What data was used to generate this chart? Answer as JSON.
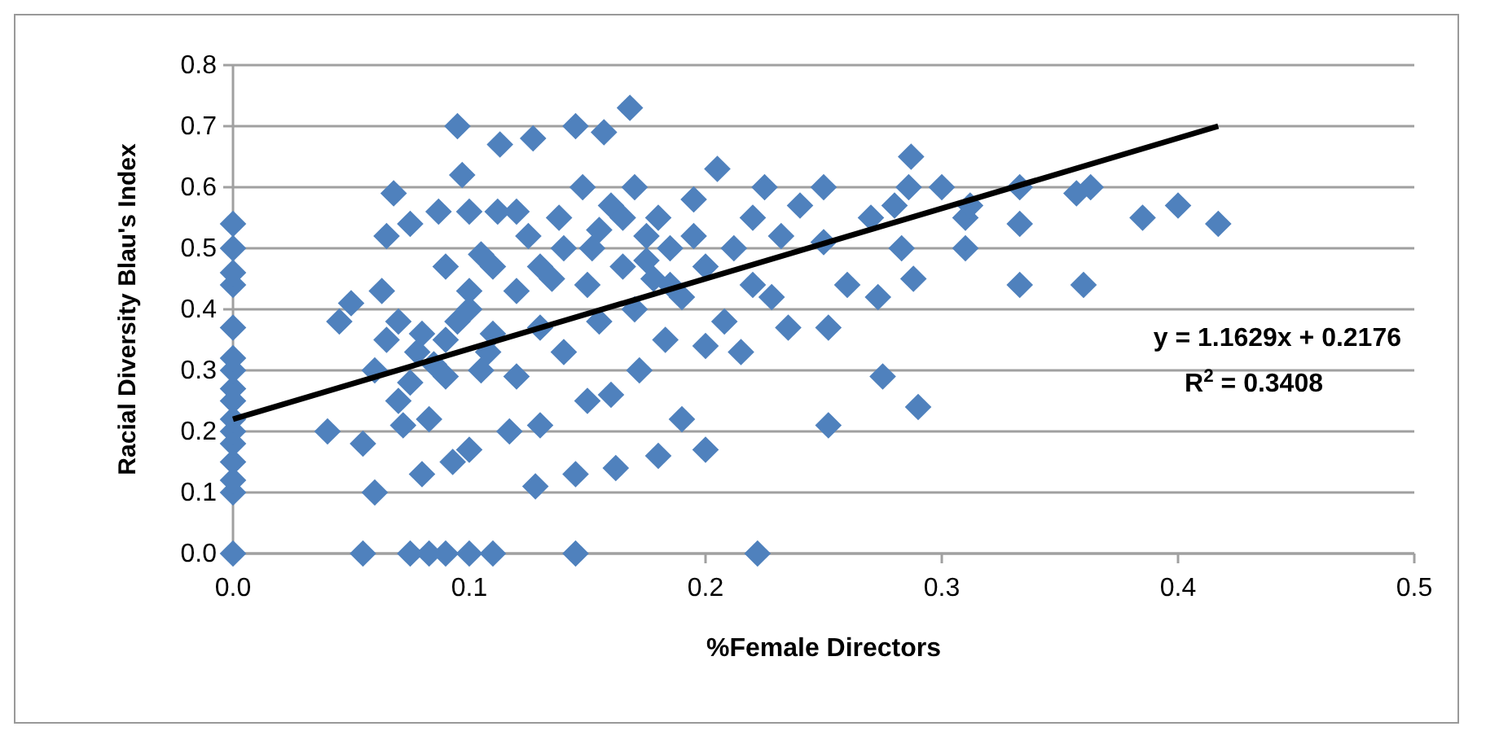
{
  "chart_data": {
    "type": "scatter",
    "xlabel": "%Female Directors",
    "ylabel": "Racial Diversity Blau's  Index",
    "xlim": [
      0,
      0.5
    ],
    "ylim": [
      0,
      0.8
    ],
    "xticks": [
      {
        "value": 0,
        "label": "0.0"
      },
      0.1,
      0.2,
      0.3,
      0.4,
      0.5
    ],
    "yticks": [
      {
        "value": 0,
        "label": "0.0"
      },
      0.1,
      0.2,
      0.3,
      0.4,
      0.5,
      0.6,
      0.7,
      0.8
    ],
    "grid": "y",
    "annotations": [
      "y = 1.1629x + 0.2176",
      "R$^{2}$ = 0.3408"
    ],
    "series": [
      {
        "color": "#4f81bd",
        "marker": "diamond",
        "x": [
          0,
          0,
          0,
          0,
          0,
          0,
          0,
          0,
          0,
          0,
          0,
          0,
          0,
          0,
          0,
          0,
          0.055,
          0.075,
          0.083,
          0.09,
          0.1,
          0.11,
          0.145,
          0.222,
          0.04,
          0.045,
          0.05,
          0.055,
          0.06,
          0.063,
          0.065,
          0.068,
          0.07,
          0.07,
          0.072,
          0.075,
          0.078,
          0.08,
          0.08,
          0.083,
          0.087,
          0.09,
          0.09,
          0.093,
          0.095,
          0.097,
          0.1,
          0.1,
          0.1,
          0.105,
          0.108,
          0.11,
          0.112,
          0.113,
          0.117,
          0.12,
          0.12,
          0.12,
          0.125,
          0.127,
          0.128,
          0.13,
          0.13,
          0.135,
          0.138,
          0.14,
          0.145,
          0.145,
          0.148,
          0.15,
          0.15,
          0.152,
          0.155,
          0.157,
          0.16,
          0.16,
          0.162,
          0.165,
          0.168,
          0.17,
          0.17,
          0.172,
          0.175,
          0.178,
          0.18,
          0.18,
          0.183,
          0.185,
          0.19,
          0.19,
          0.195,
          0.2,
          0.2,
          0.2,
          0.205,
          0.208,
          0.212,
          0.215,
          0.22,
          0.22,
          0.225,
          0.228,
          0.232,
          0.235,
          0.24,
          0.25,
          0.25,
          0.252,
          0.252,
          0.26,
          0.27,
          0.273,
          0.275,
          0.28,
          0.283,
          0.286,
          0.287,
          0.288,
          0.29,
          0.3,
          0.31,
          0.31,
          0.312,
          0.333,
          0.333,
          0.333,
          0.357,
          0.36,
          0.363,
          0.385,
          0.4,
          0.417,
          0.06,
          0.065,
          0.075,
          0.085,
          0.09,
          0.095,
          0.1,
          0.105,
          0.11,
          0.13,
          0.14,
          0.155,
          0.165,
          0.175,
          0.185,
          0.195
        ],
        "values": [
          0,
          0.1,
          0.12,
          0.15,
          0.18,
          0.2,
          0.22,
          0.25,
          0.27,
          0.3,
          0.32,
          0.37,
          0.44,
          0.46,
          0.5,
          0.54,
          0,
          0,
          0,
          0,
          0,
          0,
          0,
          0,
          0.2,
          0.38,
          0.41,
          0.18,
          0.1,
          0.43,
          0.52,
          0.59,
          0.38,
          0.25,
          0.21,
          0.54,
          0.33,
          0.36,
          0.13,
          0.22,
          0.56,
          0.47,
          0.29,
          0.15,
          0.7,
          0.62,
          0.56,
          0.4,
          0.17,
          0.49,
          0.33,
          0.47,
          0.56,
          0.67,
          0.2,
          0.43,
          0.56,
          0.29,
          0.52,
          0.68,
          0.11,
          0.37,
          0.21,
          0.45,
          0.55,
          0.33,
          0.7,
          0.13,
          0.6,
          0.44,
          0.25,
          0.5,
          0.38,
          0.69,
          0.57,
          0.26,
          0.14,
          0.47,
          0.73,
          0.4,
          0.6,
          0.3,
          0.52,
          0.45,
          0.55,
          0.16,
          0.35,
          0.5,
          0.42,
          0.22,
          0.58,
          0.47,
          0.34,
          0.17,
          0.63,
          0.38,
          0.5,
          0.33,
          0.55,
          0.44,
          0.6,
          0.42,
          0.52,
          0.37,
          0.57,
          0.6,
          0.51,
          0.37,
          0.21,
          0.44,
          0.55,
          0.42,
          0.29,
          0.57,
          0.5,
          0.6,
          0.65,
          0.45,
          0.24,
          0.6,
          0.5,
          0.55,
          0.57,
          0.6,
          0.54,
          0.44,
          0.59,
          0.44,
          0.6,
          0.55,
          0.57,
          0.54,
          0.3,
          0.35,
          0.28,
          0.31,
          0.35,
          0.38,
          0.43,
          0.3,
          0.36,
          0.47,
          0.5,
          0.53,
          0.55,
          0.48,
          0.44,
          0.52
        ]
      },
      {
        "type": "line",
        "color": "#000000",
        "marker": "none",
        "x": [
          0,
          0.417
        ],
        "values": [
          0.22,
          0.7
        ]
      }
    ]
  }
}
